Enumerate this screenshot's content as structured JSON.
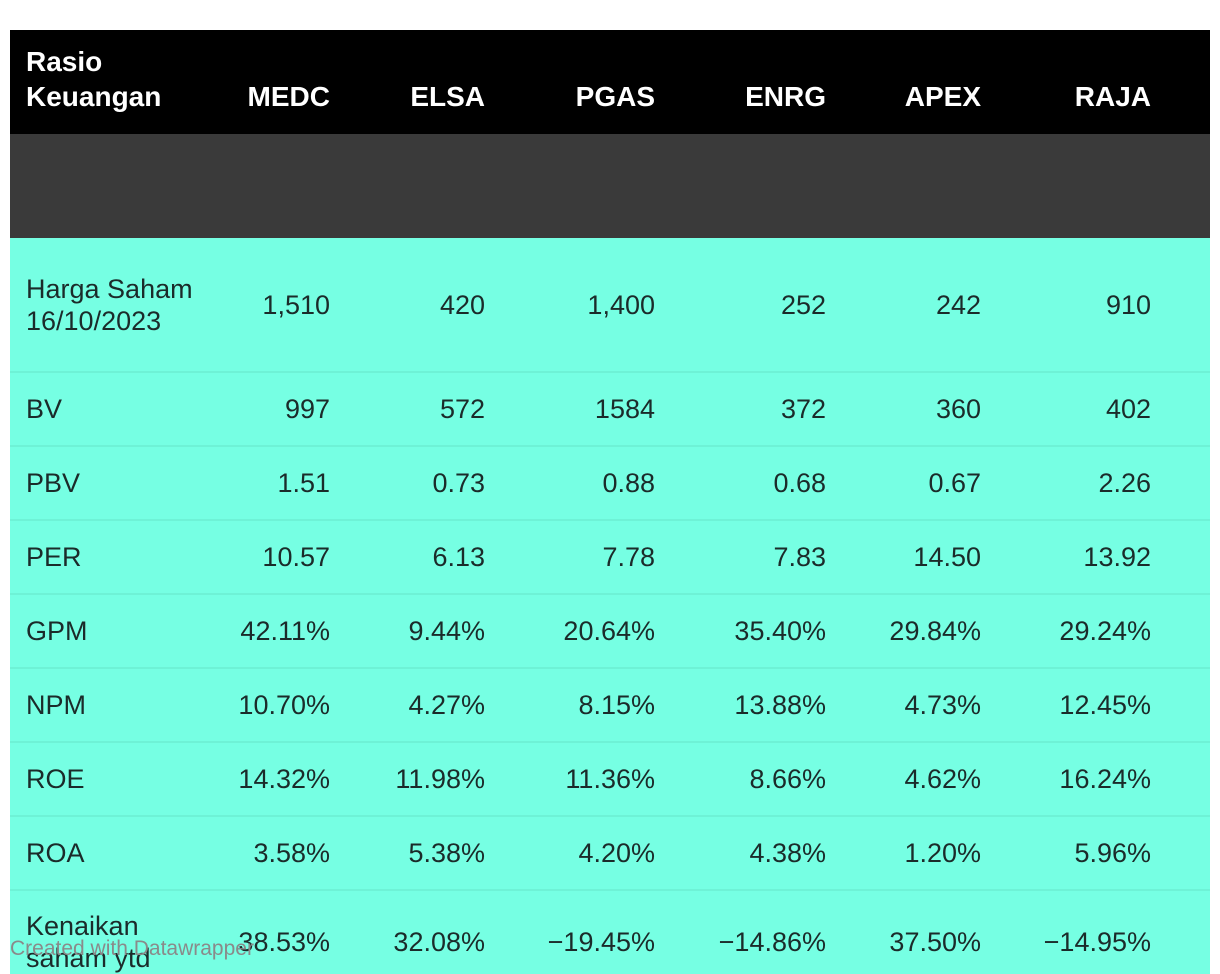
{
  "chart_data": {
    "type": "table",
    "header": {
      "label": "Rasio Keuangan",
      "columns": [
        "MEDC",
        "ELSA",
        "PGAS",
        "ENRG",
        "APEX",
        "RAJA"
      ]
    },
    "rows": [
      {
        "label": "Harga Saham 16/10/2023",
        "values": [
          "1,510",
          "420",
          "1,400",
          "252",
          "242",
          "910"
        ]
      },
      {
        "label": "BV",
        "values": [
          "997",
          "572",
          "1584",
          "372",
          "360",
          "402"
        ]
      },
      {
        "label": "PBV",
        "values": [
          "1.51",
          "0.73",
          "0.88",
          "0.68",
          "0.67",
          "2.26"
        ]
      },
      {
        "label": "PER",
        "values": [
          "10.57",
          "6.13",
          "7.78",
          "7.83",
          "14.50",
          "13.92"
        ]
      },
      {
        "label": "GPM",
        "values": [
          "42.11%",
          "9.44%",
          "20.64%",
          "35.40%",
          "29.84%",
          "29.24%"
        ]
      },
      {
        "label": "NPM",
        "values": [
          "10.70%",
          "4.27%",
          "8.15%",
          "13.88%",
          "4.73%",
          "12.45%"
        ]
      },
      {
        "label": "ROE",
        "values": [
          "14.32%",
          "11.98%",
          "11.36%",
          "8.66%",
          "4.62%",
          "16.24%"
        ]
      },
      {
        "label": "ROA",
        "values": [
          "3.58%",
          "5.38%",
          "4.20%",
          "4.38%",
          "1.20%",
          "5.96%"
        ]
      },
      {
        "label": "Kenaikan saham ytd",
        "values": [
          "38.53%",
          "32.08%",
          "−19.45%",
          "−14.86%",
          "37.50%",
          "−14.95%"
        ]
      }
    ]
  },
  "footer": {
    "credit": "Created with Datawrapper"
  },
  "colors": {
    "header_bg": "#000000",
    "row_bg": "#76ffe3",
    "text": "#1b2b2a"
  }
}
